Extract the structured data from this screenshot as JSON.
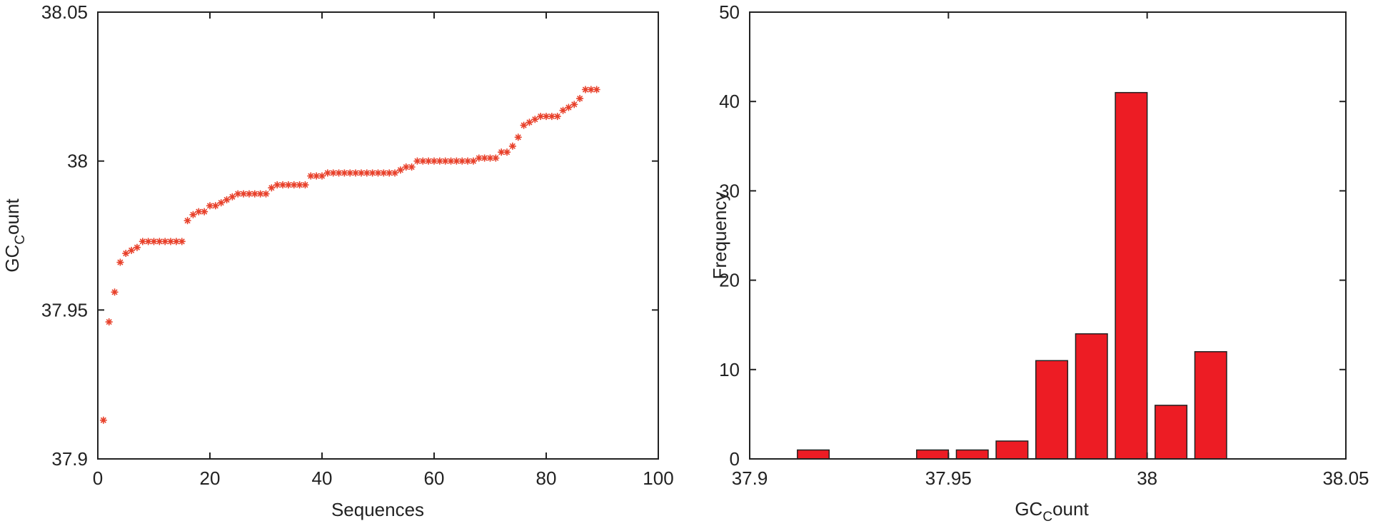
{
  "chart_data": [
    {
      "type": "scatter",
      "title": "",
      "xlabel": "Sequences",
      "ylabel": {
        "main": "GC",
        "sub": "C",
        "rest": "ount"
      },
      "xlim": [
        0,
        100
      ],
      "ylim": [
        37.9,
        38.05
      ],
      "xticks": [
        0,
        20,
        40,
        60,
        80,
        100
      ],
      "yticks": [
        37.9,
        37.95,
        38,
        38.05
      ],
      "xtick_labels": [
        "0",
        "20",
        "40",
        "60",
        "80",
        "100"
      ],
      "ytick_labels": [
        "37.9",
        "37.95",
        "38",
        "38.05"
      ],
      "grid": false,
      "marker": "*",
      "marker_color": "#e8402a",
      "series": [
        {
          "x": [
            1,
            2,
            3,
            4,
            5,
            6,
            7,
            8,
            9,
            10,
            11,
            12,
            13,
            14,
            15,
            16,
            17,
            18,
            19,
            20,
            21,
            22,
            23,
            24,
            25,
            26,
            27,
            28,
            29,
            30,
            31,
            32,
            33,
            34,
            35,
            36,
            37,
            38,
            39,
            40,
            41,
            42,
            43,
            44,
            45,
            46,
            47,
            48,
            49,
            50,
            51,
            52,
            53,
            54,
            55,
            56,
            57,
            58,
            59,
            60,
            61,
            62,
            63,
            64,
            65,
            66,
            67,
            68,
            69,
            70,
            71,
            72,
            73,
            74,
            75,
            76,
            77,
            78,
            79,
            80,
            81,
            82,
            83,
            84,
            85,
            86,
            87,
            88,
            89
          ],
          "y": [
            37.913,
            37.946,
            37.956,
            37.966,
            37.969,
            37.97,
            37.971,
            37.973,
            37.973,
            37.973,
            37.973,
            37.973,
            37.973,
            37.973,
            37.973,
            37.98,
            37.982,
            37.983,
            37.983,
            37.985,
            37.985,
            37.986,
            37.987,
            37.988,
            37.989,
            37.989,
            37.989,
            37.989,
            37.989,
            37.989,
            37.991,
            37.992,
            37.992,
            37.992,
            37.992,
            37.992,
            37.992,
            37.995,
            37.995,
            37.995,
            37.996,
            37.996,
            37.996,
            37.996,
            37.996,
            37.996,
            37.996,
            37.996,
            37.996,
            37.996,
            37.996,
            37.996,
            37.996,
            37.997,
            37.998,
            37.998,
            38.0,
            38.0,
            38.0,
            38.0,
            38.0,
            38.0,
            38.0,
            38.0,
            38.0,
            38.0,
            38.0,
            38.001,
            38.001,
            38.001,
            38.001,
            38.003,
            38.003,
            38.005,
            38.008,
            38.012,
            38.013,
            38.014,
            38.015,
            38.015,
            38.015,
            38.015,
            38.017,
            38.018,
            38.019,
            38.021,
            38.024,
            38.024,
            38.024
          ]
        }
      ]
    },
    {
      "type": "bar",
      "title": "",
      "xlabel": {
        "main": "GC",
        "sub": "C",
        "rest": "ount"
      },
      "ylabel": "Frequency",
      "xlim": [
        37.9,
        38.05
      ],
      "ylim": [
        0,
        50
      ],
      "xticks": [
        37.9,
        37.95,
        38,
        38.05
      ],
      "yticks": [
        0,
        10,
        20,
        30,
        40,
        50
      ],
      "xtick_labels": [
        "37.9",
        "37.95",
        "38",
        "38.05"
      ],
      "ytick_labels": [
        "0",
        "10",
        "20",
        "30",
        "40",
        "50"
      ],
      "grid": false,
      "bar_color": "#ed1c24",
      "bar_width": 0.008,
      "x": [
        37.916,
        37.936,
        37.946,
        37.956,
        37.966,
        37.976,
        37.986,
        37.996,
        38.006,
        38.016,
        38.026
      ],
      "values": [
        1,
        0,
        1,
        1,
        2,
        11,
        14,
        41,
        6,
        12,
        0
      ]
    }
  ]
}
